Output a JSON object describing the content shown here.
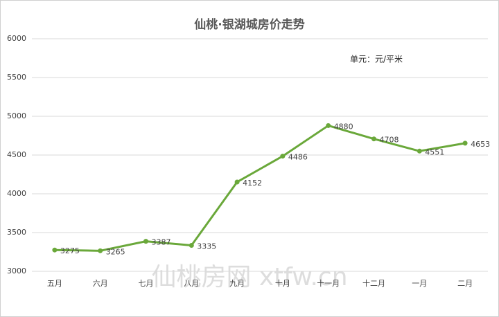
{
  "chart_data": {
    "type": "line",
    "title": "仙桃·银湖城房价走势",
    "annotation": "单元：元/平米",
    "watermark": "仙桃房网 xtfw.cn",
    "categories": [
      "五月",
      "六月",
      "七月",
      "八月",
      "九月",
      "十月",
      "十一月",
      "十二月",
      "一月",
      "二月"
    ],
    "series": [
      {
        "name": "房价",
        "color": "#6aa83a",
        "values": [
          3275,
          3265,
          3387,
          3335,
          4152,
          4486,
          4880,
          4708,
          4551,
          4653
        ]
      }
    ],
    "ylim": [
      3000,
      6000
    ],
    "yticks": [
      3000,
      3500,
      4000,
      4500,
      5000,
      5500,
      6000
    ],
    "grid": true,
    "legend": false
  }
}
